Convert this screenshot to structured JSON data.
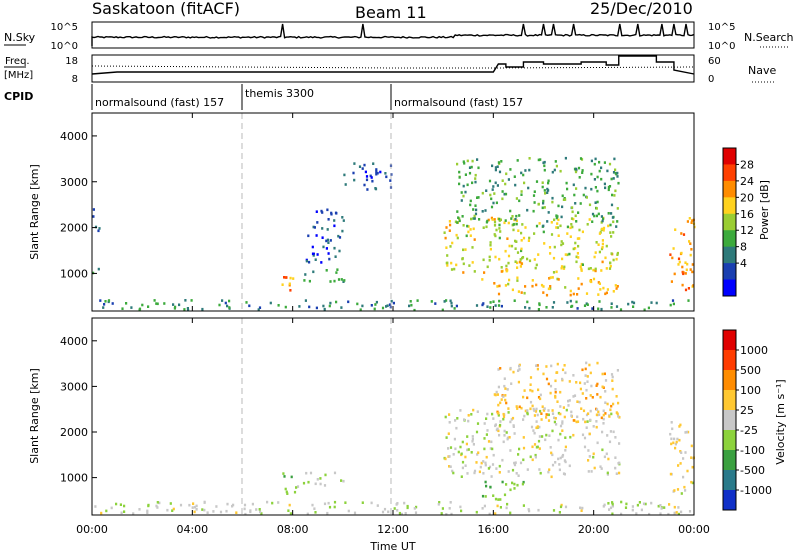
{
  "header": {
    "station": "Saskatoon (fitACF)",
    "beam": "Beam 11",
    "date": "25/Dec/2010"
  },
  "top_panels": {
    "nsky_label": "N.Sky",
    "nsky_ticks": [
      "10^5",
      "10^0"
    ],
    "nsearch_label": "N.Search",
    "nsearch_ticks": [
      "10^5",
      "10^0"
    ],
    "freq_label_1": "Freq.",
    "freq_label_2": "[MHz]",
    "freq_ticks": [
      "18",
      "8"
    ],
    "nave_label": "Nave",
    "nave_ticks": [
      "60",
      "0"
    ],
    "cpid_label": "CPID",
    "cpid_segments": [
      {
        "label": "normalsound (fast) 157",
        "start_hour": 0
      },
      {
        "label": "themis 3300",
        "start_hour": 6
      },
      {
        "label": "normalsound (fast) 157",
        "start_hour": 12
      }
    ]
  },
  "power_panel": {
    "ylabel": "Slant Range [km]",
    "yticks": [
      "4000",
      "3000",
      "2000",
      "1000"
    ],
    "colorbar_label": "Power [dB]",
    "colorbar_ticks": [
      "28",
      "24",
      "20",
      "16",
      "12",
      "8",
      "4"
    ],
    "colors": [
      "#0000ff",
      "#1a3fb0",
      "#2e7a7a",
      "#3caa3c",
      "#9acd32",
      "#ffd21e",
      "#ff8c00",
      "#ff4000",
      "#e00000"
    ]
  },
  "velocity_panel": {
    "ylabel": "Slant Range [km]",
    "yticks": [
      "4000",
      "3000",
      "2000",
      "1000"
    ],
    "colorbar_label": "Velocity [m s⁻¹]",
    "colorbar_ticks": [
      "1000",
      "500",
      "100",
      "25",
      "-25",
      "-100",
      "-500",
      "-1000"
    ],
    "colors": [
      "#1030c8",
      "#2a7a8a",
      "#3aa040",
      "#8cd23c",
      "#c8c8c8",
      "#ffc832",
      "#ff8c00",
      "#ff3c00",
      "#e00000"
    ]
  },
  "x_axis": {
    "label": "Time UT",
    "ticks": [
      "00:00",
      "04:00",
      "08:00",
      "12:00",
      "16:00",
      "20:00",
      "00:00"
    ]
  },
  "chart_data": {
    "type": "heatmap",
    "title": "Saskatoon (fitACF)  Beam 11  25/Dec/2010",
    "xlabel": "Time UT",
    "x_range_hours": [
      0,
      24
    ],
    "y_range_km": [
      180,
      4500
    ],
    "panels": [
      {
        "name": "Power [dB]",
        "colorbar_range": [
          0,
          32
        ],
        "features": [
          {
            "t_start": 0,
            "t_end": 24,
            "range_start": 180,
            "range_end": 400,
            "value": 10
          },
          {
            "t_start": 0.0,
            "t_end": 0.3,
            "range_start": 900,
            "range_end": 1100,
            "value": 14
          },
          {
            "t_start": 0.0,
            "t_end": 0.3,
            "range_start": 1900,
            "range_end": 2500,
            "value": 8
          },
          {
            "t_start": 7.5,
            "t_end": 8.2,
            "range_start": 600,
            "range_end": 1100,
            "value": 22
          },
          {
            "t_start": 8.4,
            "t_end": 10.2,
            "range_start": 800,
            "range_end": 1100,
            "value": 12
          },
          {
            "t_start": 8.5,
            "t_end": 10.0,
            "range_start": 1200,
            "range_end": 2400,
            "value": 6
          },
          {
            "t_start": 10.0,
            "t_end": 12.0,
            "range_start": 2800,
            "range_end": 3400,
            "value": 6
          },
          {
            "t_start": 14.0,
            "t_end": 21.0,
            "range_start": 1000,
            "range_end": 2200,
            "value": 18
          },
          {
            "t_start": 14.5,
            "t_end": 21.0,
            "range_start": 2000,
            "range_end": 3500,
            "value": 12
          },
          {
            "t_start": 15.5,
            "t_end": 21.0,
            "range_start": 500,
            "range_end": 900,
            "value": 20
          },
          {
            "t_start": 23.0,
            "t_end": 24.0,
            "range_start": 600,
            "range_end": 2200,
            "value": 22
          }
        ]
      },
      {
        "name": "Velocity [m s-1]",
        "colorbar_range": [
          -1000,
          1000
        ],
        "features": [
          {
            "t_start": 0,
            "t_end": 24,
            "range_start": 180,
            "range_end": 450,
            "value": -60
          },
          {
            "t_start": 7.5,
            "t_end": 8.2,
            "range_start": 600,
            "range_end": 1100,
            "value": -200
          },
          {
            "t_start": 8.4,
            "t_end": 10.2,
            "range_start": 800,
            "range_end": 1100,
            "value": 0
          },
          {
            "t_start": 14.0,
            "t_end": 21.0,
            "range_start": 1000,
            "range_end": 2500,
            "value": 0
          },
          {
            "t_start": 15.5,
            "t_end": 17.5,
            "range_start": 500,
            "range_end": 900,
            "value": -300
          },
          {
            "t_start": 16.0,
            "t_end": 21.0,
            "range_start": 2200,
            "range_end": 3500,
            "value": 200
          },
          {
            "t_start": 23.0,
            "t_end": 24.0,
            "range_start": 600,
            "range_end": 2200,
            "value": 80
          }
        ]
      }
    ]
  }
}
